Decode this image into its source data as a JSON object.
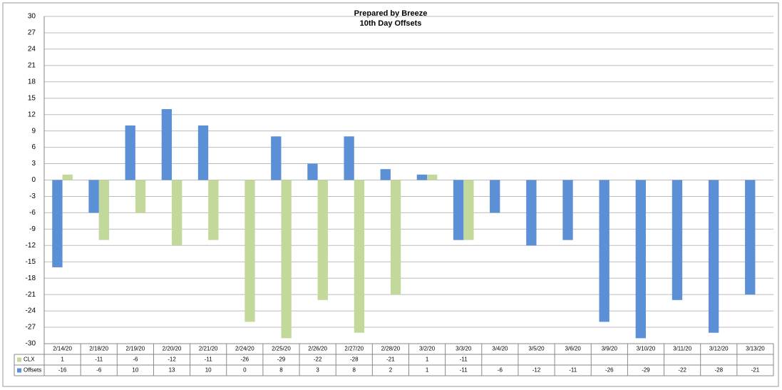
{
  "chart_data": {
    "type": "bar",
    "title": "Prepared by Breeze",
    "subtitle": "10th Day Offsets",
    "categories": [
      "2/14/20",
      "2/18/20",
      "2/19/20",
      "2/20/20",
      "2/21/20",
      "2/24/20",
      "2/25/20",
      "2/26/20",
      "2/27/20",
      "2/28/20",
      "3/2/20",
      "3/3/20",
      "3/4/20",
      "3/5/20",
      "3/6/20",
      "3/9/20",
      "3/10/20",
      "3/11/20",
      "3/12/20",
      "3/13/20"
    ],
    "series": [
      {
        "name": "CLX",
        "color": "#c3d99b",
        "values": [
          1,
          -11,
          -6,
          -12,
          -11,
          -26,
          -29,
          -22,
          -28,
          -21,
          1,
          -11,
          null,
          null,
          null,
          null,
          null,
          null,
          null,
          null
        ]
      },
      {
        "name": "Offsets",
        "color": "#5b8fd6",
        "values": [
          -16,
          -6,
          10,
          13,
          10,
          0,
          8,
          3,
          8,
          2,
          1,
          -11,
          -6,
          -12,
          -11,
          -26,
          -29,
          -22,
          -28,
          -21
        ]
      }
    ],
    "ylim": [
      -30,
      30
    ],
    "yticks": [
      -30,
      -27,
      -24,
      -21,
      -18,
      -15,
      -12,
      -9,
      -6,
      -3,
      0,
      3,
      6,
      9,
      12,
      15,
      18,
      21,
      24,
      27,
      30
    ],
    "grid": true
  }
}
